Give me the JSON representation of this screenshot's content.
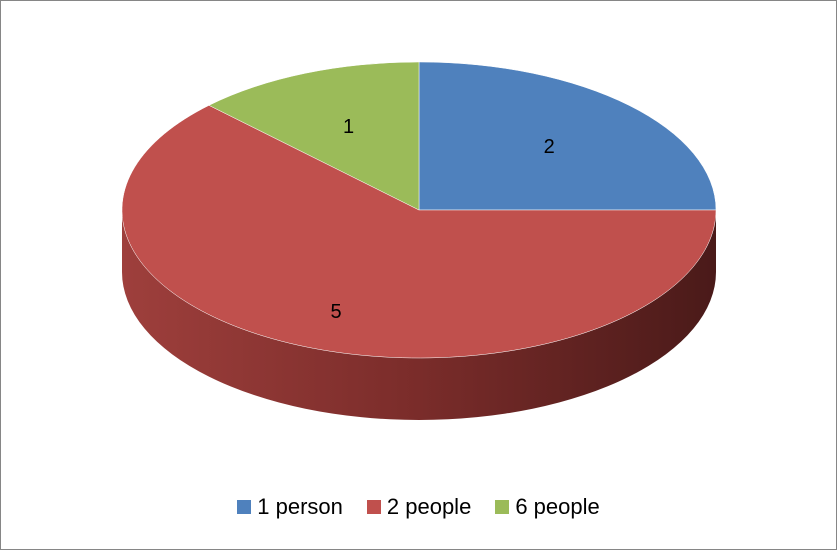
{
  "chart_data": {
    "type": "pie",
    "categories": [
      "1 person",
      "2 people",
      "6 people"
    ],
    "values": [
      2,
      5,
      1
    ],
    "data_labels": [
      "2",
      "5",
      "1"
    ],
    "colors": [
      "#4F81BD",
      "#C0504D",
      "#9BBB59"
    ],
    "title": "",
    "legend_position": "bottom",
    "style": "3d"
  }
}
